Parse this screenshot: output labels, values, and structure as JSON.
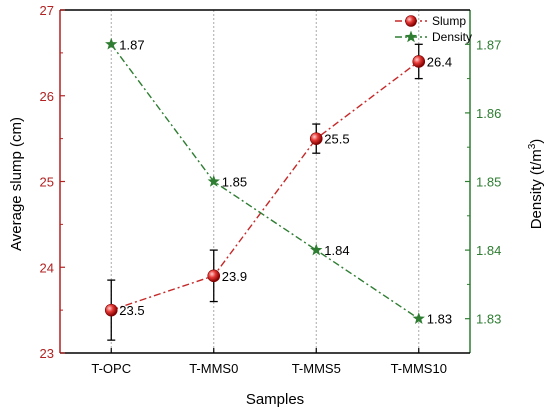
{
  "chart_data": {
    "type": "line",
    "categories": [
      "T-OPC",
      "T-MMS0",
      "T-MMS5",
      "T-MMS10"
    ],
    "xlabel": "Samples",
    "legend_position": "top-right",
    "grid": "vertical dotted",
    "left_axis": {
      "label": "Average slump (cm)",
      "ylim": [
        23,
        27
      ],
      "ticks": [
        23,
        24,
        25,
        26,
        27
      ],
      "color": "#b22222"
    },
    "right_axis": {
      "label_main": "Density (t/m",
      "label_sup": "3",
      "label_tail": ")",
      "ylim": [
        1.825,
        1.875
      ],
      "ticks": [
        1.83,
        1.84,
        1.85,
        1.86,
        1.87
      ],
      "tick_labels": [
        "1.83",
        "1.84",
        "1.85",
        "1.86",
        "1.87"
      ],
      "color": "#2e7d32"
    },
    "series": [
      {
        "name": "Slump",
        "axis": "left",
        "values": [
          23.5,
          23.9,
          25.5,
          26.4
        ],
        "labels": [
          "23.5",
          "23.9",
          "25.5",
          "26.4"
        ],
        "errors": [
          0.35,
          0.3,
          0.17,
          0.2
        ],
        "color": "#c62828",
        "marker": "sphere",
        "line_style": "dash-dot"
      },
      {
        "name": "Density",
        "axis": "right",
        "values": [
          1.87,
          1.85,
          1.84,
          1.83
        ],
        "labels": [
          "1.87",
          "1.85",
          "1.84",
          "1.83"
        ],
        "color": "#2e7d32",
        "marker": "star",
        "line_style": "dash-dot"
      }
    ]
  }
}
